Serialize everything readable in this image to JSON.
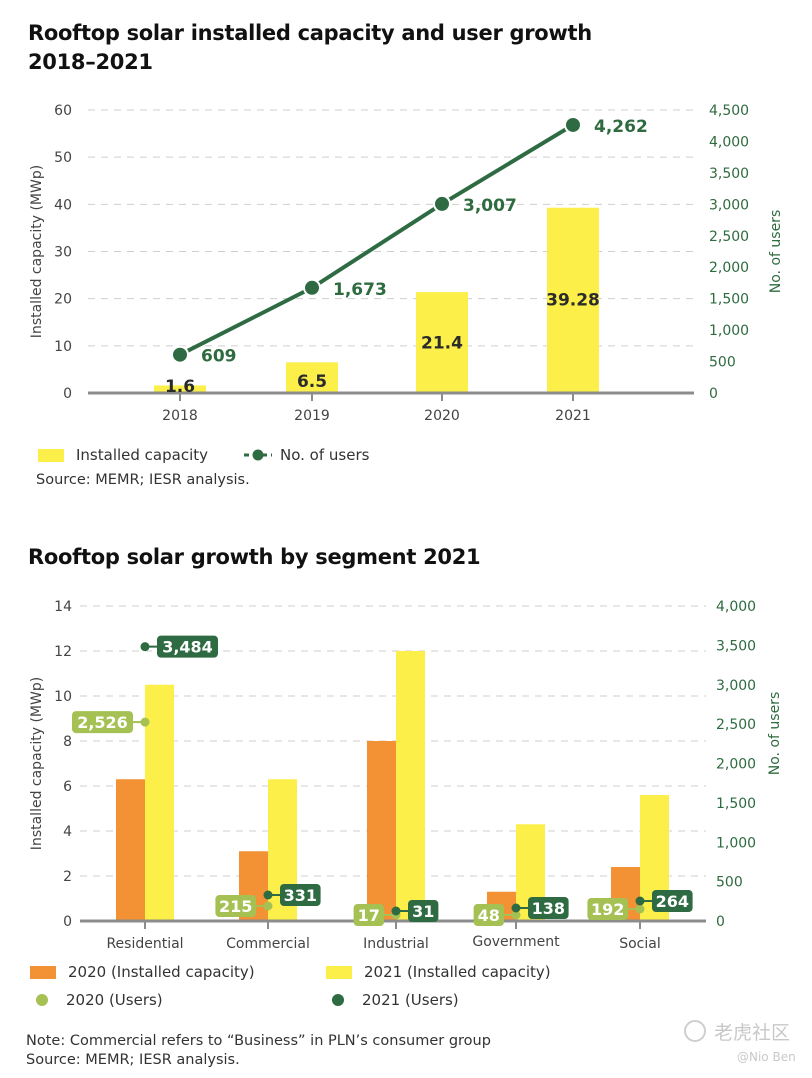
{
  "colors": {
    "yellow": "#fcef4a",
    "orange": "#f39235",
    "dark_green": "#2e6b42",
    "light_green": "#a6c153",
    "grid": "#cfcfcf",
    "axis": "#8c8c8c"
  },
  "chart_data": [
    {
      "type": "bar",
      "title": "Rooftop solar installed capacity and user growth",
      "subtitle": "2018–2021",
      "categories": [
        "2018",
        "2019",
        "2020",
        "2021"
      ],
      "series": [
        {
          "name": "Installed capacity",
          "axis": "left",
          "kind": "bar",
          "values": [
            1.6,
            6.5,
            21.4,
            39.28
          ],
          "labels": [
            "1.6",
            "6.5",
            "21.4",
            "39.28"
          ]
        },
        {
          "name": "No. of users",
          "axis": "right",
          "kind": "line",
          "values": [
            609,
            1673,
            3007,
            4262
          ],
          "labels": [
            "609",
            "1,673",
            "3,007",
            "4,262"
          ]
        }
      ],
      "ylabel": "Installed capacity (MWp)",
      "ylabel_right": "No. of users",
      "ylim": [
        0,
        60
      ],
      "yticks": [
        "0",
        "10",
        "20",
        "30",
        "40",
        "50",
        "60"
      ],
      "ylim_right": [
        0,
        4500
      ],
      "yticks_right": [
        "0",
        "500",
        "1,000",
        "1,500",
        "2,000",
        "2,500",
        "3,000",
        "3,500",
        "4,000",
        "4,500"
      ],
      "grid": true,
      "legend": [
        "Installed capacity",
        "No. of users"
      ],
      "legend_position": "bottom-left",
      "source": "Source: MEMR; IESR analysis."
    },
    {
      "type": "bar",
      "title": "Rooftop solar growth by segment 2021",
      "categories": [
        "Residential",
        "Commercial",
        "Industrial",
        "Government",
        "Social"
      ],
      "series": [
        {
          "name": "2020 (Installed capacity)",
          "axis": "left",
          "kind": "bar",
          "values": [
            6.3,
            3.1,
            8.0,
            1.3,
            2.4
          ]
        },
        {
          "name": "2021 (Installed capacity)",
          "axis": "left",
          "kind": "bar",
          "values": [
            10.5,
            6.3,
            12.0,
            4.3,
            5.6
          ]
        },
        {
          "name": "2020 (Users)",
          "axis": "right",
          "kind": "point",
          "values": [
            2526,
            215,
            17,
            48,
            192
          ],
          "labels": [
            "2,526",
            "215",
            "17",
            "48",
            "192"
          ]
        },
        {
          "name": "2021 (Users)",
          "axis": "right",
          "kind": "point",
          "values": [
            3484,
            331,
            31,
            138,
            264
          ],
          "labels": [
            "3,484",
            "331",
            "31",
            "138",
            "264"
          ]
        }
      ],
      "ylabel": "Installed capacity (MWp)",
      "ylabel_right": "No. of users",
      "ylim": [
        0,
        14
      ],
      "yticks": [
        "0",
        "2",
        "4",
        "6",
        "8",
        "10",
        "12",
        "14"
      ],
      "ylim_right": [
        0,
        4000
      ],
      "yticks_right": [
        "0",
        "500",
        "1,000",
        "1,500",
        "2,000",
        "2,500",
        "3,000",
        "3,500",
        "4,000"
      ],
      "grid": true,
      "legend": [
        "2020 (Installed capacity)",
        "2021 (Installed capacity)",
        "2020 (Users)",
        "2021 (Users)"
      ],
      "legend_position": "bottom-left",
      "note": "Note: Commercial refers to “Business” in PLN’s consumer group",
      "source": "Source: MEMR; IESR analysis."
    }
  ],
  "watermark": {
    "brand": "老虎社区",
    "user": "@Nio Ben"
  }
}
